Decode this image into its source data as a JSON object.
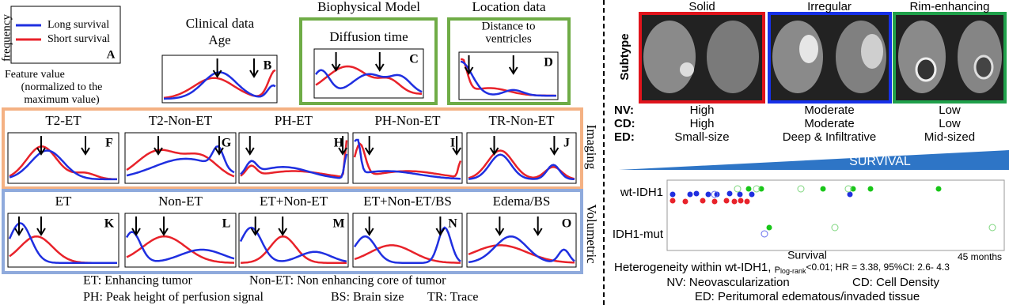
{
  "legend": {
    "long": "Long survival",
    "short": "Short survival",
    "letter": "A",
    "y_label": "frequency",
    "x_label": [
      "Feature value",
      "(normalized to the",
      "maximum value)"
    ]
  },
  "groups": {
    "clinical": "Clinical data",
    "biophysical": "Biophysical Model",
    "location": "Location data",
    "imaging": "Imaging",
    "volumetric": "Volumetric"
  },
  "panels": [
    {
      "title": [
        "Age"
      ],
      "letter": "B"
    },
    {
      "title": [
        "Diffusion time"
      ],
      "letter": "C"
    },
    {
      "title": [
        "Distance to",
        "ventricles"
      ],
      "letter": "D"
    },
    {
      "title": [
        "T2-ET"
      ],
      "letter": "F"
    },
    {
      "title": [
        "T2-Non-ET"
      ],
      "letter": "G"
    },
    {
      "title": [
        "PH-ET"
      ],
      "letter": "H"
    },
    {
      "title": [
        "PH-Non-ET"
      ],
      "letter": "I"
    },
    {
      "title": [
        "TR-Non-ET"
      ],
      "letter": "J"
    },
    {
      "title": [
        "ET"
      ],
      "letter": "K"
    },
    {
      "title": [
        "Non-ET"
      ],
      "letter": "L"
    },
    {
      "title": [
        "ET+Non-ET"
      ],
      "letter": "M"
    },
    {
      "title": [
        "ET+Non-ET/BS"
      ],
      "letter": "N"
    },
    {
      "title": [
        "Edema/BS"
      ],
      "letter": "O"
    }
  ],
  "footer": [
    "ET: Enhancing tumor",
    "Non-ET: Non enhancing core of tumor",
    "PH: Peak height of perfusion signal",
    "BS: Brain size",
    "TR: Trace"
  ],
  "subtypes": {
    "label": "Subtype",
    "row_labels": [
      "NV:",
      "CD:",
      "ED:"
    ],
    "columns": [
      {
        "name": "Solid",
        "values": [
          "High",
          "High",
          "Small-size"
        ]
      },
      {
        "name": "Irregular",
        "values": [
          "Moderate",
          "Moderate",
          "Deep & Infiltrative"
        ]
      },
      {
        "name": "Rim-enhancing",
        "values": [
          "Low",
          "Low",
          "Mid-sized"
        ]
      }
    ]
  },
  "survival": {
    "banner": "SURVIVAL",
    "rows": [
      "wt-IDH1",
      "IDH1-mut"
    ],
    "x_label": "Survival",
    "x_end": "45 months",
    "stats": {
      "prefix": "Heterogeneity within wt-IDH1, ",
      "p": "P",
      "p_sub": "log-rank",
      "rest": "<0.01; HR = 3.38, 95%CI: 2.6- 4.3"
    }
  },
  "abbreviations": [
    "NV: Neovascularization",
    "CD: Cell Density",
    "ED: Peritumoral edematous/invaded tissue"
  ]
}
